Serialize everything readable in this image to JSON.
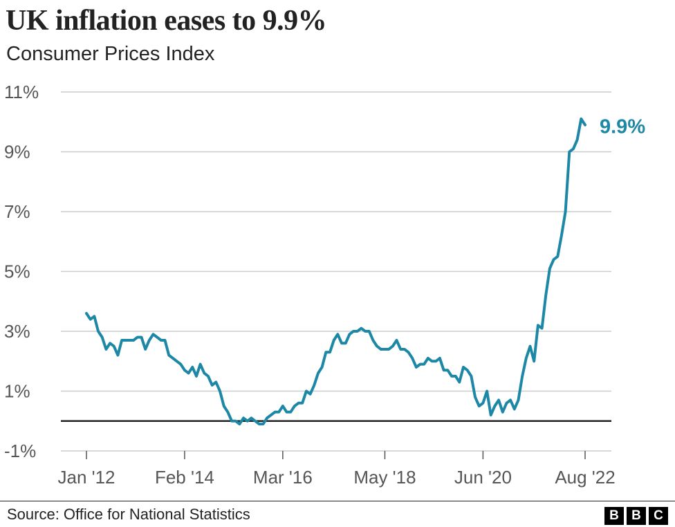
{
  "header": {
    "title": "UK inflation eases to 9.9%",
    "subtitle": "Consumer Prices Index"
  },
  "footer": {
    "source": "Source: Office for National Statistics",
    "logo_letters": [
      "B",
      "B",
      "C"
    ]
  },
  "colors": {
    "line": "#1d87a6",
    "grid": "#cccccc",
    "zero_line": "#222222",
    "tick_text": "#555555"
  },
  "chart_data": {
    "type": "line",
    "title": "UK inflation eases to 9.9%",
    "subtitle": "Consumer Prices Index",
    "xlabel": "",
    "ylabel": "",
    "ylim": [
      -1,
      11
    ],
    "y_ticks": [
      -1,
      1,
      3,
      5,
      7,
      9,
      11
    ],
    "y_tick_labels": [
      "-1%",
      "1%",
      "3%",
      "5%",
      "7%",
      "9%",
      "11%"
    ],
    "x_ticks": [
      "2012-01",
      "2014-02",
      "2016-03",
      "2018-05",
      "2020-06",
      "2022-08"
    ],
    "x_tick_labels": [
      "Jan '12",
      "Feb '14",
      "Mar '16",
      "May '18",
      "Jun '20",
      "Aug '22"
    ],
    "x_start": "2012-01",
    "grid": true,
    "zero_line": true,
    "end_label": "9.9%",
    "series": [
      {
        "values": [
          3.6,
          3.4,
          3.5,
          3.0,
          2.8,
          2.4,
          2.6,
          2.5,
          2.2,
          2.7,
          2.7,
          2.7,
          2.7,
          2.8,
          2.8,
          2.4,
          2.7,
          2.9,
          2.8,
          2.7,
          2.7,
          2.2,
          2.1,
          2.0,
          1.9,
          1.7,
          1.6,
          1.8,
          1.5,
          1.9,
          1.6,
          1.5,
          1.2,
          1.3,
          1.0,
          0.5,
          0.3,
          0.0,
          0.0,
          -0.1,
          0.1,
          0.0,
          0.1,
          0.0,
          -0.1,
          -0.1,
          0.1,
          0.2,
          0.3,
          0.3,
          0.5,
          0.3,
          0.3,
          0.5,
          0.6,
          0.6,
          1.0,
          0.9,
          1.2,
          1.6,
          1.8,
          2.3,
          2.3,
          2.7,
          2.9,
          2.6,
          2.6,
          2.9,
          3.0,
          3.0,
          3.1,
          3.0,
          3.0,
          2.7,
          2.5,
          2.4,
          2.4,
          2.4,
          2.5,
          2.7,
          2.4,
          2.4,
          2.3,
          2.1,
          1.8,
          1.9,
          1.9,
          2.1,
          2.0,
          2.0,
          2.1,
          1.7,
          1.7,
          1.5,
          1.5,
          1.3,
          1.8,
          1.7,
          1.5,
          0.8,
          0.5,
          0.6,
          1.0,
          0.2,
          0.5,
          0.7,
          0.3,
          0.6,
          0.7,
          0.4,
          0.7,
          1.5,
          2.1,
          2.5,
          2.0,
          3.2,
          3.1,
          4.2,
          5.1,
          5.4,
          5.5,
          6.2,
          7.0,
          9.0,
          9.1,
          9.4,
          10.1,
          9.9
        ]
      }
    ]
  }
}
